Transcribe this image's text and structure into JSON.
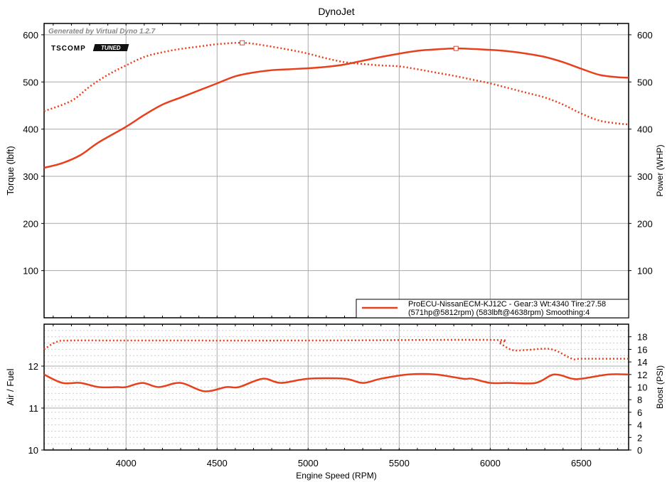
{
  "chart_data": [
    {
      "type": "line",
      "title": "DynoJet",
      "watermark": "Generated by Virtual Dyno 1.2.7",
      "logo": "TSCOMP TUNED",
      "xlabel": "Engine Speed (RPM)",
      "xlim": [
        3550,
        6760
      ],
      "xticks": [
        4000,
        4500,
        5000,
        5500,
        6000,
        6500
      ],
      "ylabel": "Torque (lbft)",
      "ylim": [
        0,
        624
      ],
      "yticks": [
        100,
        200,
        300,
        400,
        500,
        600
      ],
      "y2label": "Power (WHP)",
      "y2lim": [
        0,
        624
      ],
      "y2ticks": [
        100,
        200,
        300,
        400,
        500,
        600
      ],
      "legend": {
        "line1": "ProECU-NissanECM-KJ12C -  Gear:3 Wt:4340 Tire:27.58",
        "line2": "(571hp@5812rpm) (583lbft@4638rpm) Smoothing:4",
        "placement": "bottom-right"
      },
      "series": [
        {
          "name": "Torque",
          "style": "dotted",
          "color": "#e8401c",
          "peak": [
            4638,
            583
          ],
          "x": [
            3550,
            3700,
            3800,
            3900,
            4000,
            4100,
            4200,
            4300,
            4400,
            4500,
            4638,
            4750,
            4900,
            5000,
            5100,
            5200,
            5300,
            5400,
            5500,
            5600,
            5700,
            5800,
            5900,
            6000,
            6100,
            6200,
            6300,
            6400,
            6500,
            6600,
            6700,
            6760
          ],
          "y": [
            438,
            460,
            490,
            515,
            535,
            553,
            563,
            570,
            575,
            580,
            583,
            578,
            568,
            560,
            550,
            542,
            538,
            535,
            533,
            527,
            520,
            513,
            505,
            497,
            487,
            477,
            467,
            452,
            433,
            418,
            412,
            410
          ]
        },
        {
          "name": "Power",
          "style": "solid",
          "color": "#e8401c",
          "peak": [
            5812,
            571
          ],
          "x": [
            3550,
            3650,
            3750,
            3850,
            4000,
            4100,
            4200,
            4300,
            4400,
            4500,
            4600,
            4700,
            4800,
            4900,
            5000,
            5100,
            5200,
            5300,
            5400,
            5500,
            5600,
            5700,
            5812,
            5900,
            6000,
            6100,
            6200,
            6300,
            6400,
            6500,
            6600,
            6700,
            6760
          ],
          "y": [
            318,
            328,
            345,
            372,
            405,
            430,
            452,
            467,
            482,
            497,
            512,
            520,
            525,
            527,
            529,
            532,
            537,
            545,
            553,
            560,
            566,
            569,
            571,
            570,
            568,
            565,
            560,
            553,
            542,
            528,
            515,
            510,
            509
          ]
        }
      ]
    },
    {
      "type": "line",
      "xlabel": "Engine Speed (RPM)",
      "xlim": [
        3550,
        6760
      ],
      "xticks": [
        4000,
        4500,
        5000,
        5500,
        6000,
        6500
      ],
      "ylabel": "Air / Fuel",
      "ylim": [
        10,
        13
      ],
      "yticks": [
        10,
        11,
        12
      ],
      "y2label": "Boost (PSI)",
      "y2lim": [
        0,
        20
      ],
      "y2ticks": [
        0,
        2,
        4,
        6,
        8,
        10,
        12,
        14,
        16,
        18
      ],
      "series": [
        {
          "name": "Air / Fuel",
          "style": "solid",
          "axis": "left",
          "color": "#e8401c",
          "x": [
            3550,
            3650,
            3750,
            3850,
            3950,
            4000,
            4090,
            4180,
            4300,
            4430,
            4550,
            4620,
            4750,
            4850,
            5000,
            5200,
            5300,
            5400,
            5550,
            5700,
            5850,
            5900,
            6000,
            6100,
            6250,
            6350,
            6450,
            6500,
            6650,
            6760
          ],
          "y": [
            11.8,
            11.6,
            11.6,
            11.5,
            11.5,
            11.5,
            11.6,
            11.5,
            11.6,
            11.4,
            11.5,
            11.5,
            11.7,
            11.6,
            11.7,
            11.7,
            11.6,
            11.7,
            11.8,
            11.8,
            11.7,
            11.7,
            11.6,
            11.6,
            11.6,
            11.8,
            11.7,
            11.7,
            11.8,
            11.8
          ]
        },
        {
          "name": "Boost",
          "style": "dotted",
          "axis": "right",
          "color": "#e8401c",
          "x": [
            3550,
            3620,
            3700,
            4000,
            5000,
            6000,
            6050,
            6120,
            6200,
            6300,
            6360,
            6450,
            6500,
            6760
          ],
          "y": [
            16.0,
            17.2,
            17.4,
            17.4,
            17.4,
            17.5,
            17.0,
            15.9,
            15.9,
            16.1,
            15.8,
            14.5,
            14.5,
            14.5
          ]
        }
      ]
    }
  ]
}
